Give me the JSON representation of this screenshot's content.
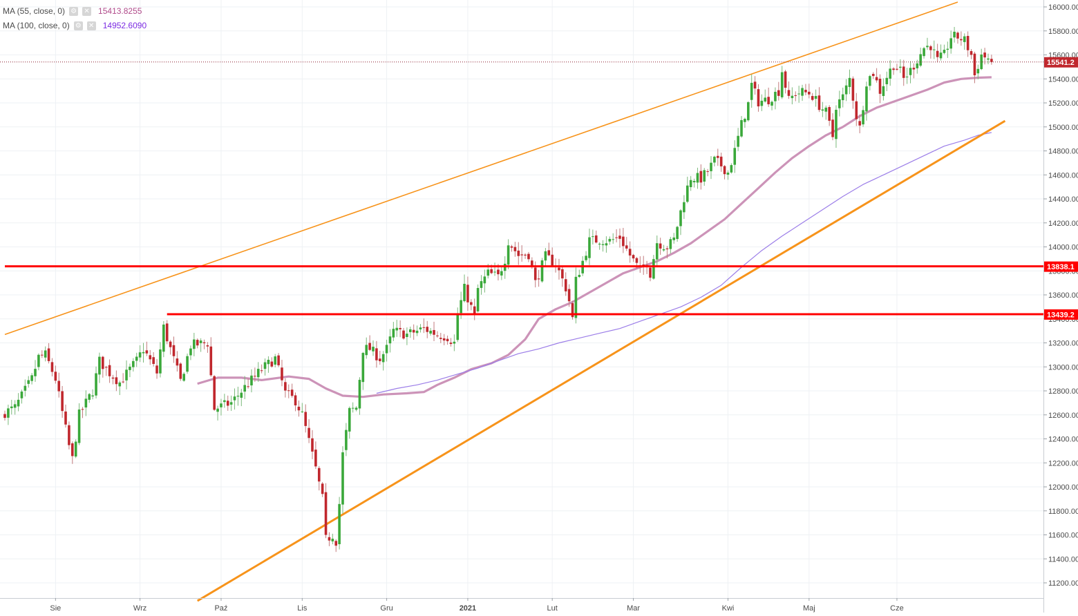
{
  "legend": [
    {
      "label": "MA (55, close, 0)",
      "value": "15413.8255",
      "color": "#b04a8a"
    },
    {
      "label": "MA (100, close, 0)",
      "value": "14952.6090",
      "color": "#7b2be2"
    }
  ],
  "icons": {
    "settings": "gear-icon",
    "close": "close-icon"
  },
  "colors": {
    "up": "#3aa83a",
    "down": "#c0272d",
    "ma55": "#c98db4",
    "ma100": "#9b7de8",
    "trend": "#f7931a",
    "level": "#ff0000",
    "grid": "#eef1f4"
  },
  "chart_data": {
    "type": "candlestick",
    "title": "",
    "xlabel": "",
    "ylabel": "",
    "ylim": [
      11100,
      16050
    ],
    "y_ticks": [
      11200,
      11400,
      11600,
      11800,
      12000,
      12200,
      12400,
      12600,
      12800,
      13000,
      13200,
      13400,
      13600,
      13800,
      14000,
      14200,
      14400,
      14600,
      14800,
      15000,
      15200,
      15400,
      15600,
      15800,
      16000
    ],
    "x_labels": [
      "Sie",
      "Wrz",
      "Paź",
      "Lis",
      "Gru",
      "2021",
      "Lut",
      "Mar",
      "Kwi",
      "Maj",
      "Cze"
    ],
    "x_label_bar": [
      15,
      40,
      64,
      88,
      113,
      137,
      162,
      186,
      214,
      238,
      264
    ],
    "bar_count": 296,
    "price_labels": [
      {
        "value": 15541.2,
        "text": "15541.2",
        "kind": "last"
      },
      {
        "value": 13838.1,
        "text": "13838.1",
        "kind": "level"
      },
      {
        "value": 13439.2,
        "text": "13439.2",
        "kind": "level"
      }
    ],
    "levels": [
      {
        "value": 13838.1,
        "from_bar": 0
      },
      {
        "value": 13439.2,
        "from_bar": 48
      }
    ],
    "trendlines": [
      {
        "from": [
          0,
          13270
        ],
        "to": [
          282,
          16040
        ],
        "width": 1.6
      },
      {
        "from": [
          57,
          11050
        ],
        "to": [
          296,
          15050
        ],
        "width": 3
      }
    ],
    "ohlc_anchors": [
      [
        0,
        12620
      ],
      [
        3,
        12660
      ],
      [
        8,
        12900
      ],
      [
        10,
        13080
      ],
      [
        12,
        13100
      ],
      [
        15,
        12900
      ],
      [
        19,
        12340
      ],
      [
        20,
        12230
      ],
      [
        22,
        12600
      ],
      [
        26,
        12800
      ],
      [
        28,
        13050
      ],
      [
        31,
        12950
      ],
      [
        34,
        12870
      ],
      [
        39,
        13050
      ],
      [
        41,
        13150
      ],
      [
        45,
        12950
      ],
      [
        47,
        13330
      ],
      [
        52,
        12880
      ],
      [
        55,
        13180
      ],
      [
        60,
        13200
      ],
      [
        62,
        12650
      ],
      [
        67,
        12700
      ],
      [
        71,
        12830
      ],
      [
        76,
        12980
      ],
      [
        80,
        13070
      ],
      [
        83,
        12780
      ],
      [
        86,
        12720
      ],
      [
        88,
        12600
      ],
      [
        90,
        12380
      ],
      [
        92,
        12150
      ],
      [
        94,
        11900
      ],
      [
        95,
        11560
      ],
      [
        97,
        11600
      ],
      [
        98,
        11550
      ],
      [
        99,
        11860
      ],
      [
        100,
        12270
      ],
      [
        102,
        12630
      ],
      [
        104,
        12660
      ],
      [
        106,
        13150
      ],
      [
        108,
        13150
      ],
      [
        111,
        13070
      ],
      [
        113,
        13150
      ],
      [
        115,
        13300
      ],
      [
        119,
        13270
      ],
      [
        124,
        13320
      ],
      [
        128,
        13270
      ],
      [
        131,
        13250
      ],
      [
        133,
        13200
      ],
      [
        134,
        13440
      ],
      [
        136,
        13650
      ],
      [
        139,
        13420
      ],
      [
        140,
        13650
      ],
      [
        143,
        13780
      ],
      [
        146,
        13750
      ],
      [
        148,
        13900
      ],
      [
        149,
        14050
      ],
      [
        152,
        13930
      ],
      [
        155,
        13940
      ],
      [
        157,
        13700
      ],
      [
        160,
        13920
      ],
      [
        163,
        13860
      ],
      [
        166,
        13660
      ],
      [
        167,
        13550
      ],
      [
        168,
        13400
      ],
      [
        169,
        13720
      ],
      [
        171,
        13880
      ],
      [
        173,
        14050
      ],
      [
        176,
        14060
      ],
      [
        179,
        14050
      ],
      [
        182,
        14080
      ],
      [
        185,
        13930
      ],
      [
        188,
        13800
      ],
      [
        190,
        13870
      ],
      [
        191,
        13780
      ],
      [
        193,
        14040
      ],
      [
        196,
        14000
      ],
      [
        198,
        14060
      ],
      [
        201,
        14410
      ],
      [
        203,
        14580
      ],
      [
        206,
        14570
      ],
      [
        208,
        14630
      ],
      [
        210,
        14720
      ],
      [
        212,
        14680
      ],
      [
        214,
        14620
      ],
      [
        216,
        14800
      ],
      [
        218,
        15020
      ],
      [
        220,
        15190
      ],
      [
        221,
        15350
      ],
      [
        223,
        15210
      ],
      [
        226,
        15230
      ],
      [
        229,
        15300
      ],
      [
        230,
        15470
      ],
      [
        232,
        15220
      ],
      [
        234,
        15280
      ],
      [
        236,
        15290
      ],
      [
        238,
        15280
      ],
      [
        239,
        15260
      ],
      [
        241,
        15180
      ],
      [
        243,
        15120
      ],
      [
        245,
        14920
      ],
      [
        246,
        15180
      ],
      [
        248,
        15250
      ],
      [
        250,
        15400
      ],
      [
        252,
        15090
      ],
      [
        253,
        14990
      ],
      [
        255,
        15380
      ],
      [
        257,
        15450
      ],
      [
        259,
        15300
      ],
      [
        261,
        15420
      ],
      [
        263,
        15520
      ],
      [
        265,
        15460
      ],
      [
        266,
        15400
      ],
      [
        268,
        15470
      ],
      [
        270,
        15560
      ],
      [
        272,
        15660
      ],
      [
        274,
        15680
      ],
      [
        276,
        15550
      ],
      [
        278,
        15600
      ],
      [
        280,
        15750
      ],
      [
        282,
        15750
      ],
      [
        284,
        15720
      ],
      [
        286,
        15600
      ],
      [
        287,
        15430
      ],
      [
        289,
        15600
      ],
      [
        291,
        15570
      ],
      [
        292,
        15541
      ]
    ],
    "ma_series": [
      {
        "name": "MA (55, close, 0)",
        "width": 3.2,
        "opacity": 0.95,
        "points": [
          [
            57,
            12860
          ],
          [
            63,
            12910
          ],
          [
            70,
            12910
          ],
          [
            76,
            12890
          ],
          [
            84,
            12920
          ],
          [
            90,
            12900
          ],
          [
            95,
            12820
          ],
          [
            100,
            12760
          ],
          [
            106,
            12750
          ],
          [
            112,
            12770
          ],
          [
            119,
            12780
          ],
          [
            124,
            12790
          ],
          [
            128,
            12850
          ],
          [
            133,
            12910
          ],
          [
            138,
            12980
          ],
          [
            144,
            13030
          ],
          [
            149,
            13100
          ],
          [
            154,
            13230
          ],
          [
            158,
            13400
          ],
          [
            163,
            13480
          ],
          [
            168,
            13540
          ],
          [
            173,
            13620
          ],
          [
            178,
            13700
          ],
          [
            183,
            13780
          ],
          [
            188,
            13830
          ],
          [
            193,
            13880
          ],
          [
            198,
            13950
          ],
          [
            203,
            14030
          ],
          [
            208,
            14130
          ],
          [
            213,
            14230
          ],
          [
            218,
            14360
          ],
          [
            223,
            14490
          ],
          [
            228,
            14620
          ],
          [
            233,
            14740
          ],
          [
            238,
            14840
          ],
          [
            243,
            14930
          ],
          [
            248,
            15000
          ],
          [
            253,
            15090
          ],
          [
            258,
            15160
          ],
          [
            263,
            15210
          ],
          [
            268,
            15260
          ],
          [
            273,
            15310
          ],
          [
            278,
            15370
          ],
          [
            283,
            15400
          ],
          [
            288,
            15410
          ],
          [
            292,
            15414
          ]
        ]
      },
      {
        "name": "MA (100, close, 0)",
        "width": 1.2,
        "opacity": 1,
        "points": [
          [
            110,
            12780
          ],
          [
            116,
            12820
          ],
          [
            122,
            12850
          ],
          [
            128,
            12890
          ],
          [
            134,
            12940
          ],
          [
            140,
            12990
          ],
          [
            146,
            13050
          ],
          [
            152,
            13110
          ],
          [
            158,
            13150
          ],
          [
            164,
            13200
          ],
          [
            170,
            13240
          ],
          [
            176,
            13280
          ],
          [
            182,
            13320
          ],
          [
            188,
            13380
          ],
          [
            194,
            13440
          ],
          [
            200,
            13500
          ],
          [
            206,
            13580
          ],
          [
            212,
            13680
          ],
          [
            218,
            13830
          ],
          [
            224,
            13970
          ],
          [
            230,
            14090
          ],
          [
            236,
            14200
          ],
          [
            242,
            14310
          ],
          [
            248,
            14420
          ],
          [
            254,
            14520
          ],
          [
            260,
            14600
          ],
          [
            266,
            14680
          ],
          [
            272,
            14760
          ],
          [
            278,
            14840
          ],
          [
            284,
            14890
          ],
          [
            288,
            14930
          ],
          [
            292,
            14953
          ]
        ]
      }
    ]
  }
}
